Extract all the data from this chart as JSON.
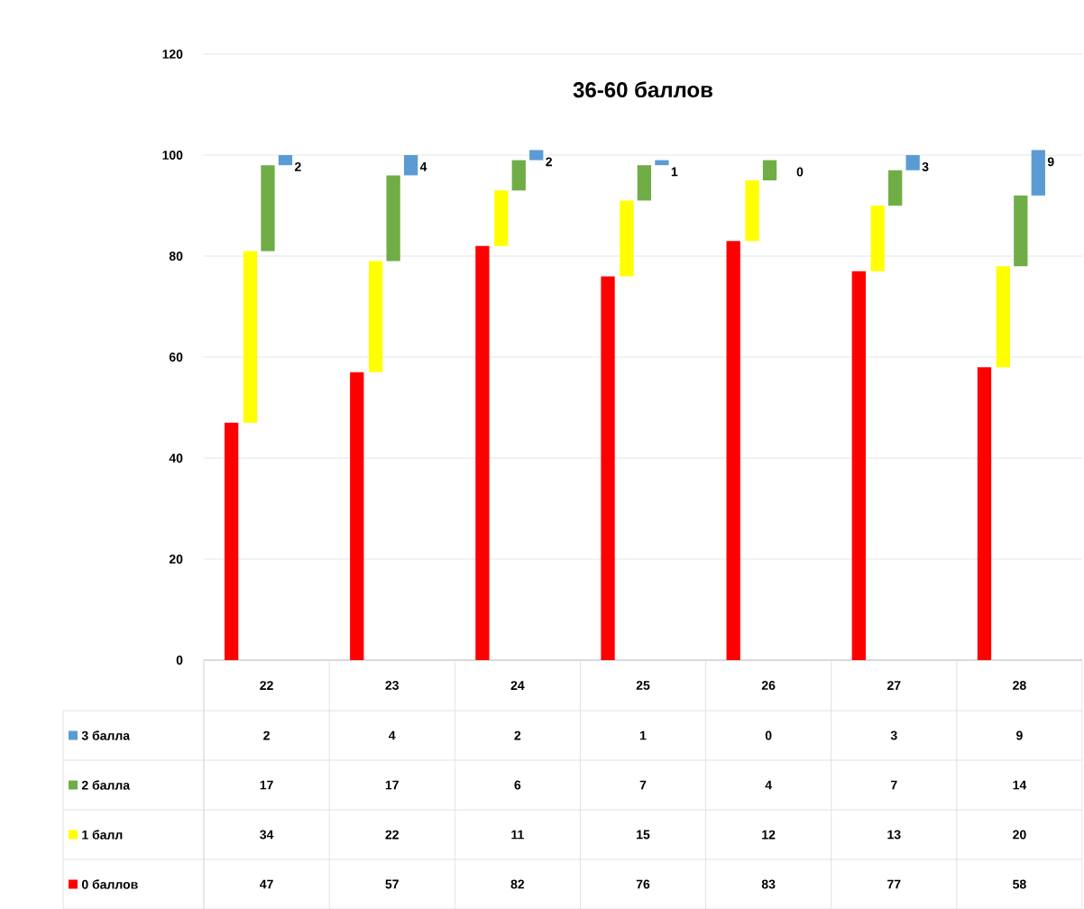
{
  "chart_data": {
    "type": "bar",
    "title": "36-60 баллов",
    "stacked": true,
    "categories": [
      "22",
      "23",
      "24",
      "25",
      "26",
      "27",
      "28"
    ],
    "series": [
      {
        "name": "0 баллов",
        "color": "#ff0000",
        "values": [
          47,
          57,
          82,
          76,
          83,
          77,
          58
        ]
      },
      {
        "name": "1 балл",
        "color": "#ffff00",
        "values": [
          34,
          22,
          11,
          15,
          12,
          13,
          20
        ]
      },
      {
        "name": "2 балла",
        "color": "#70ad47",
        "values": [
          17,
          17,
          6,
          7,
          4,
          7,
          14
        ]
      },
      {
        "name": "3 балла",
        "color": "#5b9bd5",
        "values": [
          2,
          4,
          2,
          1,
          0,
          3,
          9
        ]
      }
    ],
    "annotations": [
      "2",
      "4",
      "2",
      "1",
      "0",
      "3",
      "9"
    ],
    "ylim": [
      0,
      120
    ],
    "yticks": [
      0,
      20,
      40,
      60,
      80,
      100,
      120
    ],
    "grid": "y",
    "legend": "bottom",
    "data_labels": true
  }
}
